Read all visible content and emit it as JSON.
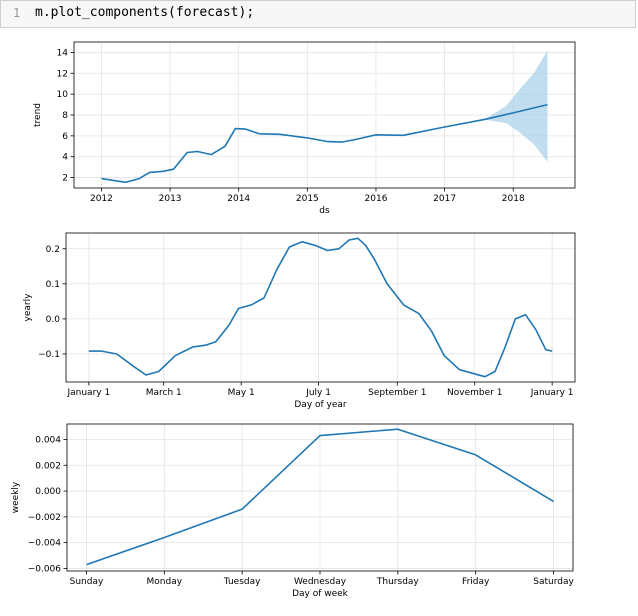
{
  "cell": {
    "line_number": "1",
    "code": "m.plot_components(forecast);"
  },
  "chart_data": [
    {
      "type": "line",
      "ylabel": "trend",
      "xlabel": "ds",
      "x_ticks": [
        "2012",
        "2013",
        "2014",
        "2015",
        "2016",
        "2017",
        "2018"
      ],
      "y_ticks": [
        "2",
        "4",
        "6",
        "8",
        "10",
        "12",
        "14"
      ],
      "xlim": [
        2011.6,
        2018.9
      ],
      "ylim": [
        1.0,
        15.0
      ],
      "color": "#1f77b4",
      "band_color": "#9fcde8",
      "x": [
        2012.0,
        2012.35,
        2012.55,
        2012.7,
        2012.9,
        2013.05,
        2013.25,
        2013.4,
        2013.6,
        2013.8,
        2013.95,
        2014.1,
        2014.3,
        2014.6,
        2015.0,
        2015.3,
        2015.5,
        2015.7,
        2016.0,
        2016.4,
        2017.0,
        2017.6,
        2018.0,
        2018.5
      ],
      "y": [
        1.9,
        1.55,
        1.9,
        2.5,
        2.6,
        2.8,
        4.4,
        4.5,
        4.2,
        5.0,
        6.7,
        6.65,
        6.2,
        6.15,
        5.8,
        5.45,
        5.4,
        5.65,
        6.1,
        6.05,
        6.85,
        7.6,
        8.2,
        9.0
      ],
      "uncertainty": {
        "x": [
          2017.6,
          2017.9,
          2018.1,
          2018.3,
          2018.5
        ],
        "lower": [
          7.55,
          7.2,
          6.3,
          5.2,
          3.5
        ],
        "upper": [
          7.65,
          8.9,
          10.5,
          12.0,
          14.2
        ]
      }
    },
    {
      "type": "line",
      "ylabel": "yearly",
      "xlabel": "Day of year",
      "x_ticks": [
        "January 1",
        "March 1",
        "May 1",
        "July 1",
        "September 1",
        "November 1",
        "January 1"
      ],
      "x_tick_positions": [
        0,
        59,
        120,
        181,
        243,
        304,
        365
      ],
      "y_ticks": [
        "−0.1",
        "0.0",
        "0.1",
        "0.2"
      ],
      "y_tick_values": [
        -0.1,
        0.0,
        0.1,
        0.2
      ],
      "xlim": [
        -18,
        383
      ],
      "ylim": [
        -0.18,
        0.245
      ],
      "color": "#1f77b4",
      "x": [
        0,
        10,
        22,
        35,
        45,
        55,
        68,
        82,
        92,
        100,
        110,
        118,
        128,
        138,
        148,
        158,
        168,
        178,
        188,
        197,
        205,
        212,
        218,
        225,
        235,
        248,
        260,
        270,
        280,
        292,
        302,
        312,
        320,
        328,
        336,
        344,
        352,
        360,
        365
      ],
      "y": [
        -0.092,
        -0.092,
        -0.1,
        -0.135,
        -0.16,
        -0.15,
        -0.105,
        -0.08,
        -0.075,
        -0.065,
        -0.02,
        0.03,
        0.04,
        0.06,
        0.14,
        0.205,
        0.22,
        0.21,
        0.195,
        0.2,
        0.225,
        0.23,
        0.21,
        0.17,
        0.1,
        0.04,
        0.015,
        -0.035,
        -0.105,
        -0.145,
        -0.155,
        -0.165,
        -0.15,
        -0.08,
        0.0,
        0.012,
        -0.03,
        -0.088,
        -0.092
      ]
    },
    {
      "type": "line",
      "ylabel": "weekly",
      "xlabel": "Day of week",
      "categories": [
        "Sunday",
        "Monday",
        "Tuesday",
        "Wednesday",
        "Thursday",
        "Friday",
        "Saturday"
      ],
      "y_ticks": [
        "−0.006",
        "−0.004",
        "−0.002",
        "0.000",
        "0.002",
        "0.004"
      ],
      "y_tick_values": [
        -0.006,
        -0.004,
        -0.002,
        0.0,
        0.002,
        0.004
      ],
      "ylim": [
        -0.0062,
        0.0052
      ],
      "color": "#1f77b4",
      "values": [
        -0.0057,
        -0.0036,
        -0.0014,
        0.0043,
        0.0048,
        0.0028,
        -0.0008
      ]
    }
  ]
}
